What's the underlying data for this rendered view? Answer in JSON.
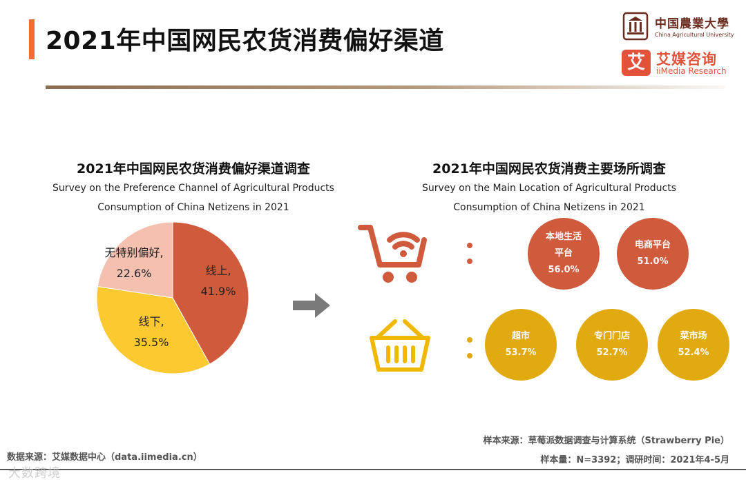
{
  "header": {
    "title": "2021年中国网民农货消费偏好渠道",
    "accent_color": "#f06e33"
  },
  "logos": {
    "cau_cn": "中国農業大學",
    "cau_en": "China Agricultural University",
    "iimedia_badge": "艾",
    "iimedia_cn": "艾媒咨询",
    "iimedia_en": "iiMedia Research"
  },
  "left_panel": {
    "title": "2021年中国网民农货消费偏好渠道调查",
    "subtitle_line1": "Survey on the Preference Channel of Agricultural Products",
    "subtitle_line2": "Consumption of China Netizens in 2021"
  },
  "right_panel": {
    "title": "2021年中国网民农货消费主要场所调查",
    "subtitle_line1": "Survey on the Main Location of Agricultural Products",
    "subtitle_line2": "Consumption of China Netizens in 2021"
  },
  "chart_data": [
    {
      "type": "pie",
      "title": "2021年中国网民农货消费偏好渠道调查",
      "slices": [
        {
          "label": "线上,",
          "value": 41.9,
          "display": "41.9%",
          "color": "#d05a3c"
        },
        {
          "label": "线下,",
          "value": 35.5,
          "display": "35.5%",
          "color": "#fcc930"
        },
        {
          "label": "无特别偏好,",
          "value": 22.6,
          "display": "22.6%",
          "color": "#f4c0b0"
        }
      ]
    },
    {
      "type": "bubble",
      "title": "2021年中国网民农货消费主要场所调查",
      "groups": [
        {
          "name": "online",
          "color": "#cf5a3c",
          "items": [
            {
              "label_line1": "本地生活",
              "label_line2": "平台",
              "value": 56.0,
              "display": "56.0%"
            },
            {
              "label_line1": "电商平台",
              "label_line2": "",
              "value": 51.0,
              "display": "51.0%"
            }
          ]
        },
        {
          "name": "offline",
          "color": "#e0aa10",
          "items": [
            {
              "label_line1": "超市",
              "label_line2": "",
              "value": 53.7,
              "display": "53.7%"
            },
            {
              "label_line1": "专门门店",
              "label_line2": "",
              "value": 52.7,
              "display": "52.7%"
            },
            {
              "label_line1": "菜市场",
              "label_line2": "",
              "value": 52.4,
              "display": "52.4%"
            }
          ]
        }
      ]
    }
  ],
  "icons": {
    "arrow": "right-arrow-icon",
    "cart": "shopping-cart-wifi-icon",
    "basket": "shopping-basket-icon"
  },
  "footer": {
    "data_source": "数据来源：艾媒数据中心（data.iimedia.cn）",
    "sample_source": "样本来源：草莓派数据调查与计算系统（Strawberry Pie）",
    "sample_size": "样本量：N=3392；调研时间：2021年4-5月",
    "watermark": "大数跨境"
  }
}
